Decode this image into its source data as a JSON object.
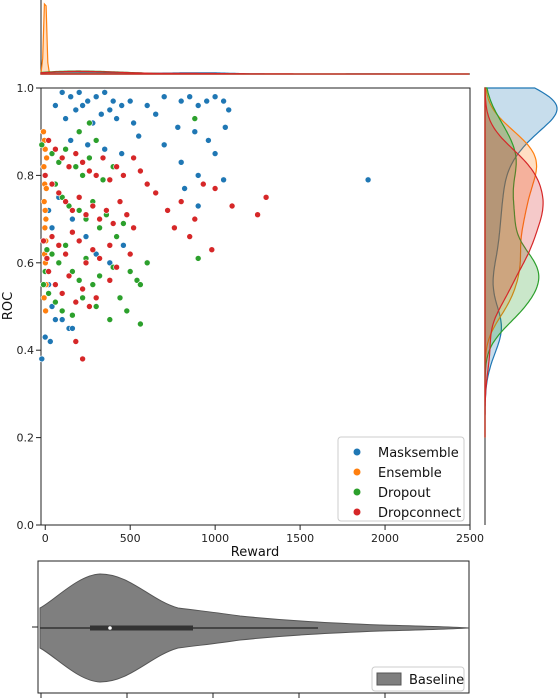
{
  "colors": {
    "maskesemble": "#1f77b4",
    "ensemble": "#ff7f0e",
    "dropout": "#2ca02c",
    "dropconnect": "#d62728",
    "baseline": "#7f7f7f"
  },
  "chart_data": [
    {
      "type": "scatter",
      "name": "joint",
      "xlabel": "Reward",
      "ylabel": "ROC",
      "xlim": [
        -25,
        2500
      ],
      "ylim": [
        0.0,
        1.0
      ],
      "xticks": [
        0,
        500,
        1000,
        1500,
        2000,
        2500
      ],
      "yticks": [
        0.0,
        0.2,
        0.4,
        0.6,
        0.8,
        1.0
      ],
      "xtick_labels": [
        "0",
        "500",
        "1000",
        "1500",
        "2000",
        "2500"
      ],
      "ytick_labels": [
        "0.0",
        "0.2",
        "0.4",
        "0.6",
        "0.8",
        "1.0"
      ],
      "legend_position": "lower right",
      "series": [
        {
          "name": "Masksemble",
          "color_key": "maskesemble",
          "points": [
            [
              100,
              0.99
            ],
            [
              150,
              0.98
            ],
            [
              200,
              0.99
            ],
            [
              250,
              0.97
            ],
            [
              300,
              0.98
            ],
            [
              350,
              0.99
            ],
            [
              400,
              0.97
            ],
            [
              450,
              0.96
            ],
            [
              500,
              0.97
            ],
            [
              600,
              0.96
            ],
            [
              700,
              0.98
            ],
            [
              800,
              0.97
            ],
            [
              850,
              0.98
            ],
            [
              900,
              0.96
            ],
            [
              950,
              0.97
            ],
            [
              1000,
              0.98
            ],
            [
              1050,
              0.97
            ],
            [
              1080,
              0.95
            ],
            [
              60,
              0.96
            ],
            [
              120,
              0.93
            ],
            [
              180,
              0.95
            ],
            [
              220,
              0.96
            ],
            [
              280,
              0.92
            ],
            [
              330,
              0.94
            ],
            [
              380,
              0.95
            ],
            [
              420,
              0.93
            ],
            [
              520,
              0.92
            ],
            [
              650,
              0.94
            ],
            [
              780,
              0.91
            ],
            [
              880,
              0.9
            ],
            [
              960,
              0.88
            ],
            [
              1060,
              0.91
            ],
            [
              150,
              0.88
            ],
            [
              250,
              0.87
            ],
            [
              350,
              0.86
            ],
            [
              450,
              0.85
            ],
            [
              550,
              0.89
            ],
            [
              700,
              0.87
            ],
            [
              800,
              0.83
            ],
            [
              900,
              0.8
            ],
            [
              1000,
              0.85
            ],
            [
              1050,
              0.79
            ],
            [
              1900,
              0.79
            ],
            [
              20,
              0.72
            ],
            [
              40,
              0.68
            ],
            [
              80,
              0.75
            ],
            [
              160,
              0.7
            ],
            [
              240,
              0.66
            ],
            [
              300,
              0.62
            ],
            [
              380,
              0.6
            ],
            [
              460,
              0.64
            ],
            [
              900,
              0.73
            ],
            [
              820,
              0.77
            ],
            [
              20,
              0.55
            ],
            [
              40,
              0.5
            ],
            [
              60,
              0.47
            ],
            [
              100,
              0.47
            ],
            [
              140,
              0.45
            ],
            [
              160,
              0.45
            ],
            [
              -20,
              0.38
            ],
            [
              0,
              0.43
            ],
            [
              30,
              0.42
            ]
          ]
        },
        {
          "name": "Ensemble",
          "color_key": "ensemble",
          "points": [
            [
              -10,
              0.9
            ],
            [
              -5,
              0.88
            ],
            [
              0,
              0.86
            ],
            [
              5,
              0.84
            ],
            [
              -8,
              0.82
            ],
            [
              2,
              0.8
            ],
            [
              -3,
              0.78
            ],
            [
              6,
              0.77
            ],
            [
              -6,
              0.74
            ],
            [
              0,
              0.72
            ],
            [
              4,
              0.7
            ],
            [
              -2,
              0.68
            ],
            [
              3,
              0.65
            ],
            [
              -4,
              0.62
            ],
            [
              1,
              0.6
            ],
            [
              -1,
              0.58
            ],
            [
              5,
              0.55
            ],
            [
              -7,
              0.52
            ],
            [
              2,
              0.49
            ],
            [
              8,
              0.84
            ]
          ]
        },
        {
          "name": "Dropout",
          "color_key": "dropout",
          "points": [
            [
              -20,
              0.87
            ],
            [
              40,
              0.85
            ],
            [
              80,
              0.83
            ],
            [
              120,
              0.86
            ],
            [
              180,
              0.82
            ],
            [
              220,
              0.8
            ],
            [
              260,
              0.84
            ],
            [
              300,
              0.88
            ],
            [
              340,
              0.79
            ],
            [
              400,
              0.82
            ],
            [
              60,
              0.78
            ],
            [
              100,
              0.75
            ],
            [
              140,
              0.73
            ],
            [
              200,
              0.72
            ],
            [
              240,
              0.7
            ],
            [
              280,
              0.74
            ],
            [
              320,
              0.68
            ],
            [
              360,
              0.71
            ],
            [
              420,
              0.66
            ],
            [
              460,
              0.69
            ],
            [
              40,
              0.62
            ],
            [
              80,
              0.6
            ],
            [
              120,
              0.64
            ],
            [
              160,
              0.58
            ],
            [
              200,
              0.56
            ],
            [
              240,
              0.61
            ],
            [
              280,
              0.55
            ],
            [
              320,
              0.57
            ],
            [
              400,
              0.59
            ],
            [
              440,
              0.52
            ],
            [
              500,
              0.58
            ],
            [
              540,
              0.56
            ],
            [
              600,
              0.6
            ],
            [
              20,
              0.53
            ],
            [
              60,
              0.51
            ],
            [
              100,
              0.49
            ],
            [
              160,
              0.48
            ],
            [
              220,
              0.52
            ],
            [
              300,
              0.5
            ],
            [
              380,
              0.47
            ],
            [
              480,
              0.49
            ],
            [
              560,
              0.46
            ],
            [
              900,
              0.61
            ],
            [
              -10,
              0.55
            ],
            [
              0,
              0.58
            ],
            [
              10,
              0.63
            ],
            [
              880,
              0.93
            ],
            [
              200,
              0.9
            ],
            [
              260,
              0.92
            ],
            [
              560,
              0.55
            ]
          ]
        },
        {
          "name": "Dropconnect",
          "color_key": "dropconnect",
          "points": [
            [
              20,
              0.88
            ],
            [
              60,
              0.86
            ],
            [
              100,
              0.84
            ],
            [
              140,
              0.82
            ],
            [
              180,
              0.85
            ],
            [
              220,
              0.83
            ],
            [
              260,
              0.81
            ],
            [
              300,
              0.8
            ],
            [
              340,
              0.84
            ],
            [
              380,
              0.79
            ],
            [
              420,
              0.82
            ],
            [
              460,
              0.8
            ],
            [
              520,
              0.84
            ],
            [
              560,
              0.81
            ],
            [
              600,
              0.78
            ],
            [
              650,
              0.76
            ],
            [
              40,
              0.78
            ],
            [
              80,
              0.76
            ],
            [
              120,
              0.74
            ],
            [
              160,
              0.72
            ],
            [
              200,
              0.75
            ],
            [
              240,
              0.71
            ],
            [
              280,
              0.73
            ],
            [
              320,
              0.7
            ],
            [
              360,
              0.72
            ],
            [
              400,
              0.69
            ],
            [
              440,
              0.74
            ],
            [
              480,
              0.71
            ],
            [
              520,
              0.68
            ],
            [
              40,
              0.66
            ],
            [
              80,
              0.64
            ],
            [
              120,
              0.62
            ],
            [
              160,
              0.67
            ],
            [
              200,
              0.65
            ],
            [
              240,
              0.6
            ],
            [
              280,
              0.63
            ],
            [
              320,
              0.61
            ],
            [
              380,
              0.64
            ],
            [
              420,
              0.59
            ],
            [
              500,
              0.62
            ],
            [
              20,
              0.58
            ],
            [
              60,
              0.55
            ],
            [
              100,
              0.53
            ],
            [
              140,
              0.57
            ],
            [
              180,
              0.51
            ],
            [
              220,
              0.54
            ],
            [
              260,
              0.5
            ],
            [
              300,
              0.52
            ],
            [
              380,
              0.56
            ],
            [
              720,
              0.72
            ],
            [
              800,
              0.74
            ],
            [
              880,
              0.7
            ],
            [
              930,
              0.78
            ],
            [
              1000,
              0.77
            ],
            [
              1100,
              0.73
            ],
            [
              1250,
              0.71
            ],
            [
              1300,
              0.75
            ],
            [
              760,
              0.68
            ],
            [
              850,
              0.66
            ],
            [
              980,
              0.63
            ],
            [
              220,
              0.38
            ],
            [
              180,
              0.42
            ],
            [
              0,
              0.8
            ],
            [
              10,
              0.61
            ],
            [
              -10,
              0.65
            ]
          ]
        }
      ]
    },
    {
      "type": "area",
      "name": "top-marginal",
      "description_kind": "kde",
      "series": [
        {
          "name": "Masksemble",
          "color_key": "maskesemble"
        },
        {
          "name": "Ensemble",
          "color_key": "ensemble"
        },
        {
          "name": "Dropout",
          "color_key": "dropout"
        },
        {
          "name": "Dropconnect",
          "color_key": "dropconnect"
        }
      ]
    },
    {
      "type": "area",
      "name": "right-marginal",
      "description_kind": "kde",
      "series": [
        {
          "name": "Masksemble",
          "color_key": "maskesemble"
        },
        {
          "name": "Ensemble",
          "color_key": "ensemble"
        },
        {
          "name": "Dropout",
          "color_key": "dropout"
        },
        {
          "name": "Dropconnect",
          "color_key": "dropconnect"
        }
      ]
    },
    {
      "type": "violin",
      "name": "baseline-violin",
      "legend_position": "lower right",
      "series": [
        {
          "name": "Baseline",
          "color_key": "baseline"
        }
      ]
    }
  ]
}
